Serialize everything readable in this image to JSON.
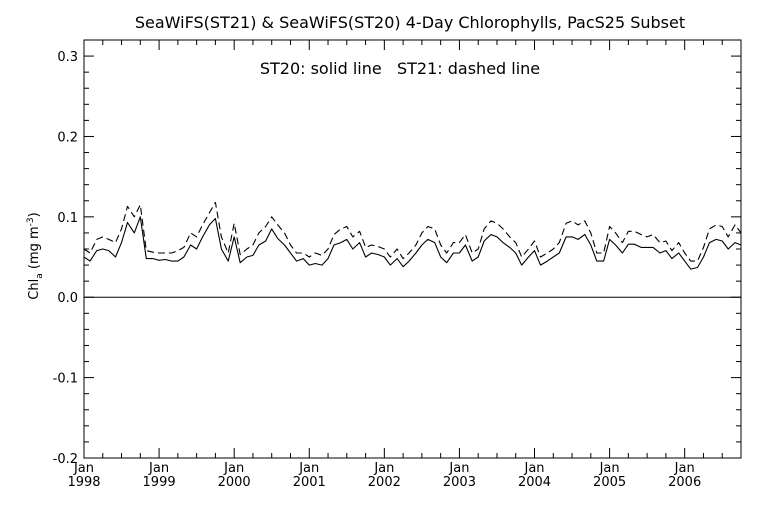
{
  "chart_data": {
    "type": "line",
    "title": "SeaWiFS(ST21) & SeaWiFS(ST20) 4-Day Chlorophylls, PacS25 Subset",
    "annotation": "ST20: solid line   ST21: dashed line",
    "ylabel_main": "Chl",
    "ylabel_sub": "a",
    "ylabel_units_open": " (mg m",
    "ylabel_units_sup": "-3",
    "ylabel_units_close": ")",
    "ylim": [
      -0.2,
      0.32
    ],
    "xlim": [
      1998.0,
      2006.75
    ],
    "y_ticks": [
      {
        "value": -0.2,
        "label": "-0.2"
      },
      {
        "value": -0.1,
        "label": "-0.1"
      },
      {
        "value": 0.0,
        "label": "0.0"
      },
      {
        "value": 0.1,
        "label": "0.1"
      },
      {
        "value": 0.2,
        "label": "0.2"
      },
      {
        "value": 0.3,
        "label": "0.3"
      }
    ],
    "x_ticks": [
      {
        "value": 1998,
        "month": "Jan",
        "year": "1998"
      },
      {
        "value": 1999,
        "month": "Jan",
        "year": "1999"
      },
      {
        "value": 2000,
        "month": "Jan",
        "year": "2000"
      },
      {
        "value": 2001,
        "month": "Jan",
        "year": "2001"
      },
      {
        "value": 2002,
        "month": "Jan",
        "year": "2002"
      },
      {
        "value": 2003,
        "month": "Jan",
        "year": "2003"
      },
      {
        "value": 2004,
        "month": "Jan",
        "year": "2004"
      },
      {
        "value": 2005,
        "month": "Jan",
        "year": "2005"
      },
      {
        "value": 2006,
        "month": "Jan",
        "year": "2006"
      }
    ],
    "x_minor_per_year": 4,
    "zero_line": true,
    "grid": false,
    "series": [
      {
        "style": "solid",
        "x": [
          1998.0,
          1998.08,
          1998.17,
          1998.25,
          1998.33,
          1998.42,
          1998.5,
          1998.58,
          1998.67,
          1998.75,
          1998.83,
          1998.92,
          1999.0,
          1999.08,
          1999.17,
          1999.25,
          1999.33,
          1999.42,
          1999.5,
          1999.58,
          1999.67,
          1999.75,
          1999.83,
          1999.92,
          2000.0,
          2000.08,
          2000.17,
          2000.25,
          2000.33,
          2000.42,
          2000.5,
          2000.58,
          2000.67,
          2000.75,
          2000.83,
          2000.92,
          2001.0,
          2001.08,
          2001.17,
          2001.25,
          2001.33,
          2001.42,
          2001.5,
          2001.58,
          2001.67,
          2001.75,
          2001.83,
          2001.92,
          2002.0,
          2002.08,
          2002.17,
          2002.25,
          2002.33,
          2002.42,
          2002.5,
          2002.58,
          2002.67,
          2002.75,
          2002.83,
          2002.92,
          2003.0,
          2003.08,
          2003.17,
          2003.25,
          2003.33,
          2003.42,
          2003.5,
          2003.58,
          2003.67,
          2003.75,
          2003.83,
          2003.92,
          2004.0,
          2004.08,
          2004.17,
          2004.25,
          2004.33,
          2004.42,
          2004.5,
          2004.58,
          2004.67,
          2004.75,
          2004.83,
          2004.92,
          2005.0,
          2005.08,
          2005.17,
          2005.25,
          2005.33,
          2005.42,
          2005.5,
          2005.58,
          2005.67,
          2005.75,
          2005.83,
          2005.92,
          2006.0,
          2006.08,
          2006.17,
          2006.25,
          2006.33,
          2006.42,
          2006.5,
          2006.58,
          2006.67,
          2006.75
        ],
        "values": [
          0.05,
          0.045,
          0.058,
          0.06,
          0.058,
          0.05,
          0.068,
          0.093,
          0.08,
          0.1,
          0.048,
          0.048,
          0.046,
          0.047,
          0.045,
          0.045,
          0.05,
          0.065,
          0.06,
          0.075,
          0.09,
          0.098,
          0.06,
          0.045,
          0.075,
          0.043,
          0.05,
          0.052,
          0.065,
          0.07,
          0.085,
          0.073,
          0.065,
          0.055,
          0.045,
          0.048,
          0.04,
          0.042,
          0.04,
          0.048,
          0.065,
          0.068,
          0.072,
          0.06,
          0.068,
          0.05,
          0.055,
          0.053,
          0.05,
          0.04,
          0.048,
          0.038,
          0.045,
          0.055,
          0.065,
          0.072,
          0.068,
          0.05,
          0.043,
          0.055,
          0.055,
          0.065,
          0.045,
          0.05,
          0.07,
          0.078,
          0.075,
          0.068,
          0.062,
          0.055,
          0.04,
          0.05,
          0.058,
          0.04,
          0.045,
          0.05,
          0.055,
          0.075,
          0.075,
          0.072,
          0.078,
          0.065,
          0.045,
          0.045,
          0.072,
          0.065,
          0.055,
          0.066,
          0.066,
          0.062,
          0.062,
          0.062,
          0.055,
          0.058,
          0.048,
          0.055,
          0.045,
          0.035,
          0.037,
          0.05,
          0.068,
          0.072,
          0.07,
          0.06,
          0.068,
          0.065
        ]
      },
      {
        "style": "dashed",
        "x": [
          1998.0,
          1998.08,
          1998.17,
          1998.25,
          1998.33,
          1998.42,
          1998.5,
          1998.58,
          1998.67,
          1998.75,
          1998.83,
          1998.92,
          1999.0,
          1999.08,
          1999.17,
          1999.25,
          1999.33,
          1999.42,
          1999.5,
          1999.58,
          1999.67,
          1999.75,
          1999.83,
          1999.92,
          2000.0,
          2000.08,
          2000.17,
          2000.25,
          2000.33,
          2000.42,
          2000.5,
          2000.58,
          2000.67,
          2000.75,
          2000.83,
          2000.92,
          2001.0,
          2001.08,
          2001.17,
          2001.25,
          2001.33,
          2001.42,
          2001.5,
          2001.58,
          2001.67,
          2001.75,
          2001.83,
          2001.92,
          2002.0,
          2002.08,
          2002.17,
          2002.25,
          2002.33,
          2002.42,
          2002.5,
          2002.58,
          2002.67,
          2002.75,
          2002.83,
          2002.92,
          2003.0,
          2003.08,
          2003.17,
          2003.25,
          2003.33,
          2003.42,
          2003.5,
          2003.58,
          2003.67,
          2003.75,
          2003.83,
          2003.92,
          2004.0,
          2004.08,
          2004.17,
          2004.25,
          2004.33,
          2004.42,
          2004.5,
          2004.58,
          2004.67,
          2004.75,
          2004.83,
          2004.92,
          2005.0,
          2005.08,
          2005.17,
          2005.25,
          2005.33,
          2005.42,
          2005.5,
          2005.58,
          2005.67,
          2005.75,
          2005.83,
          2005.92,
          2006.0,
          2006.08,
          2006.17,
          2006.25,
          2006.33,
          2006.42,
          2006.5,
          2006.58,
          2006.67,
          2006.75
        ],
        "values": [
          0.06,
          0.055,
          0.072,
          0.075,
          0.072,
          0.068,
          0.085,
          0.113,
          0.1,
          0.115,
          0.058,
          0.056,
          0.055,
          0.055,
          0.055,
          0.058,
          0.062,
          0.08,
          0.075,
          0.09,
          0.105,
          0.118,
          0.075,
          0.055,
          0.092,
          0.053,
          0.06,
          0.065,
          0.08,
          0.088,
          0.1,
          0.09,
          0.08,
          0.065,
          0.055,
          0.055,
          0.05,
          0.055,
          0.052,
          0.06,
          0.078,
          0.085,
          0.088,
          0.075,
          0.082,
          0.062,
          0.065,
          0.063,
          0.06,
          0.05,
          0.06,
          0.048,
          0.055,
          0.065,
          0.08,
          0.088,
          0.085,
          0.065,
          0.055,
          0.068,
          0.068,
          0.078,
          0.055,
          0.06,
          0.085,
          0.095,
          0.092,
          0.085,
          0.075,
          0.068,
          0.05,
          0.06,
          0.07,
          0.05,
          0.055,
          0.06,
          0.068,
          0.092,
          0.095,
          0.09,
          0.095,
          0.08,
          0.055,
          0.055,
          0.088,
          0.08,
          0.068,
          0.082,
          0.082,
          0.078,
          0.075,
          0.078,
          0.068,
          0.07,
          0.058,
          0.068,
          0.055,
          0.045,
          0.045,
          0.062,
          0.085,
          0.09,
          0.088,
          0.075,
          0.09,
          0.08
        ]
      }
    ]
  }
}
